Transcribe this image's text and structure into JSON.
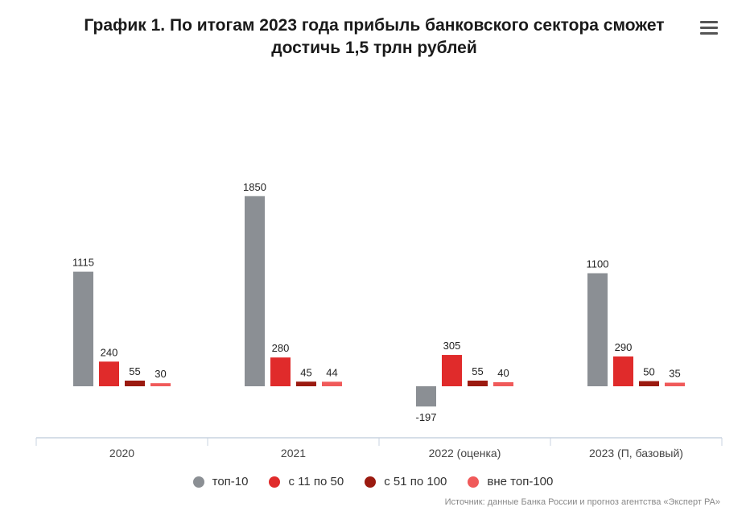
{
  "chart_data": {
    "type": "bar",
    "title": "График 1. По итогам 2023 года прибыль банковского сектора сможет достичь 1,5 трлн рублей",
    "categories": [
      "2020",
      "2021",
      "2022 (оценка)",
      "2023 (П, базовый)"
    ],
    "series": [
      {
        "name": "топ-10",
        "color": "#8b8f94",
        "values": [
          1115,
          1850,
          -197,
          1100
        ]
      },
      {
        "name": "с 11 по 50",
        "color": "#e02b2b",
        "values": [
          240,
          280,
          305,
          290
        ]
      },
      {
        "name": "с 51 по 100",
        "color": "#9b1a10",
        "values": [
          55,
          45,
          55,
          50
        ]
      },
      {
        "name": "вне топ-100",
        "color": "#f05a5a",
        "values": [
          30,
          44,
          40,
          35
        ]
      }
    ],
    "ylim": [
      -197,
      1850
    ],
    "grid": false,
    "legend_position": "bottom",
    "source": "Источник: данные Банка России и прогноз агентства «Эксперт РА»"
  },
  "menu": {
    "icon": "hamburger-menu-icon"
  }
}
